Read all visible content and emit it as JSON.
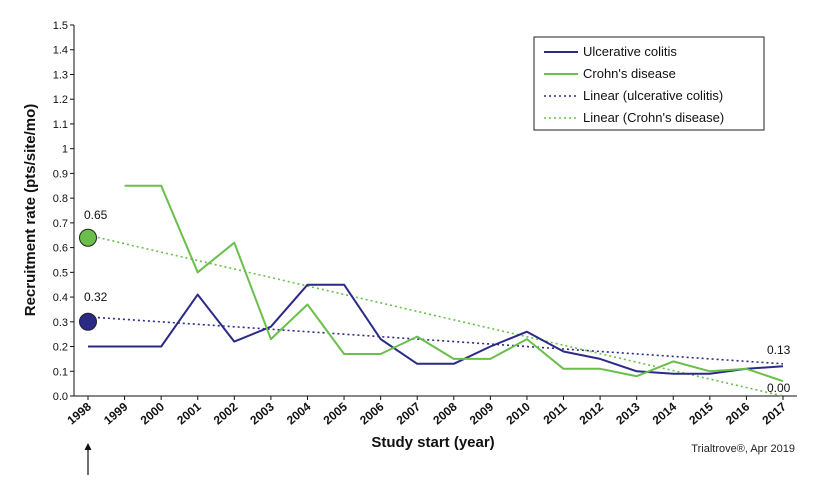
{
  "chart_data": {
    "type": "line",
    "xlabel": "Study start (year)",
    "ylabel": "Recruitment rate (pts/site/mo)",
    "ylim": [
      0,
      1.5
    ],
    "yticks": [
      "0.0",
      "0.1",
      "0.2",
      "0.3",
      "0.4",
      "0.5",
      "0.6",
      "0.7",
      "0.8",
      "0.9",
      "1",
      "1.1",
      "1.2",
      "1.3",
      "1.4",
      "1.5"
    ],
    "categories": [
      "1998",
      "1999",
      "2000",
      "2001",
      "2002",
      "2003",
      "2004",
      "2005",
      "2006",
      "2007",
      "2008",
      "2009",
      "2010",
      "2011",
      "2012",
      "2013",
      "2014",
      "2015",
      "2016",
      "2017"
    ],
    "grid": false,
    "legend_position": "top-right",
    "series": [
      {
        "name": "Ulcerative colitis",
        "color": "#2b2a86",
        "style": "solid",
        "values": [
          0.2,
          0.2,
          0.2,
          0.41,
          0.22,
          0.28,
          0.45,
          0.45,
          0.23,
          0.13,
          0.13,
          0.2,
          0.26,
          0.18,
          0.15,
          0.1,
          0.09,
          0.09,
          0.11,
          0.12
        ]
      },
      {
        "name": "Crohn's disease",
        "color": "#6abf4b",
        "style": "solid",
        "values": [
          null,
          0.85,
          0.85,
          0.5,
          0.62,
          0.23,
          0.37,
          0.17,
          0.17,
          0.24,
          0.15,
          0.15,
          0.23,
          0.11,
          0.11,
          0.08,
          0.14,
          0.1,
          0.11,
          0.06
        ]
      },
      {
        "name": "Linear (ulcerative colitis)",
        "color": "#2b2a86",
        "style": "dotted",
        "values": [
          0.32,
          null,
          null,
          null,
          null,
          null,
          null,
          null,
          null,
          null,
          null,
          null,
          null,
          null,
          null,
          null,
          null,
          null,
          null,
          0.13
        ]
      },
      {
        "name": "Linear (Crohn's disease)",
        "color": "#6abf4b",
        "style": "dotted",
        "values": [
          0.65,
          null,
          null,
          null,
          null,
          null,
          null,
          null,
          null,
          null,
          null,
          null,
          null,
          null,
          null,
          null,
          null,
          null,
          null,
          0.0
        ]
      }
    ],
    "markers": [
      {
        "x": "1998",
        "y": 0.3,
        "color": "#2b2a86"
      },
      {
        "x": "1998",
        "y": 0.64,
        "color": "#6abf4b"
      }
    ],
    "annotations": [
      {
        "text": "0.65",
        "x": "1998",
        "y": 0.65
      },
      {
        "text": "0.32",
        "x": "1998",
        "y": 0.32
      },
      {
        "text": "0.13",
        "x": "2017",
        "y": 0.13
      },
      {
        "text": "0.00",
        "x": "2017",
        "y": 0.0
      }
    ],
    "source": "Trialtrove®, Apr 2019"
  }
}
